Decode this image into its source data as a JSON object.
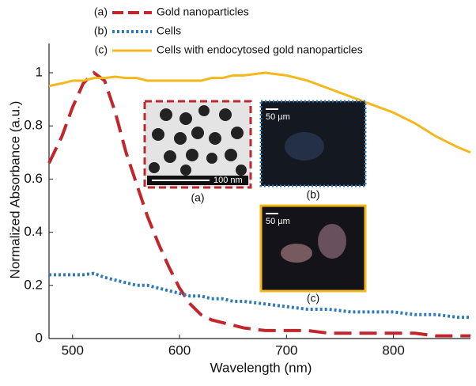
{
  "chart_data": {
    "type": "line",
    "x_label": "Wavelength (nm)",
    "y_label": "Normalized Absorbance (a.u.)",
    "x": [
      478,
      490,
      500,
      510,
      520,
      530,
      540,
      550,
      560,
      570,
      580,
      590,
      600,
      610,
      620,
      630,
      640,
      650,
      660,
      680,
      700,
      720,
      740,
      760,
      780,
      800,
      820,
      840,
      860,
      872
    ],
    "series": [
      {
        "tag": "(a)",
        "name": "Gold nanoparticles",
        "color": "#c0272d",
        "dash": "dashed",
        "values": [
          0.66,
          0.76,
          0.87,
          0.96,
          1.0,
          0.97,
          0.85,
          0.7,
          0.58,
          0.46,
          0.36,
          0.27,
          0.19,
          0.13,
          0.09,
          0.07,
          0.06,
          0.05,
          0.04,
          0.03,
          0.03,
          0.03,
          0.02,
          0.02,
          0.02,
          0.02,
          0.02,
          0.01,
          0.01,
          0.01
        ]
      },
      {
        "tag": "(b)",
        "name": "Cells",
        "color": "#2e7bb8",
        "dash": "dotted",
        "values": [
          0.24,
          0.24,
          0.24,
          0.24,
          0.245,
          0.23,
          0.22,
          0.21,
          0.2,
          0.2,
          0.19,
          0.18,
          0.17,
          0.16,
          0.16,
          0.15,
          0.15,
          0.14,
          0.14,
          0.13,
          0.12,
          0.11,
          0.11,
          0.1,
          0.1,
          0.1,
          0.09,
          0.09,
          0.08,
          0.08
        ]
      },
      {
        "tag": "(c)",
        "name": "Cells with endocytosed gold nanoparticles",
        "color": "#f2b81c",
        "dash": "solid",
        "values": [
          0.95,
          0.96,
          0.97,
          0.97,
          0.98,
          0.98,
          0.985,
          0.98,
          0.98,
          0.97,
          0.97,
          0.97,
          0.97,
          0.97,
          0.97,
          0.98,
          0.98,
          0.99,
          0.99,
          1.0,
          0.99,
          0.97,
          0.94,
          0.91,
          0.88,
          0.85,
          0.81,
          0.76,
          0.72,
          0.7
        ]
      }
    ],
    "xlim": [
      478,
      872
    ],
    "xticks": [
      500,
      600,
      700,
      800
    ],
    "ylim": [
      0,
      1.11
    ],
    "yticks": [
      0,
      0.2,
      0.4,
      0.6,
      0.8,
      1
    ],
    "insets": [
      {
        "label": "(a)",
        "scale_bar": "100 nm"
      },
      {
        "label": "(b)",
        "scale_bar": "50 µm"
      },
      {
        "label": "(c)",
        "scale_bar": "50 µm"
      }
    ]
  }
}
